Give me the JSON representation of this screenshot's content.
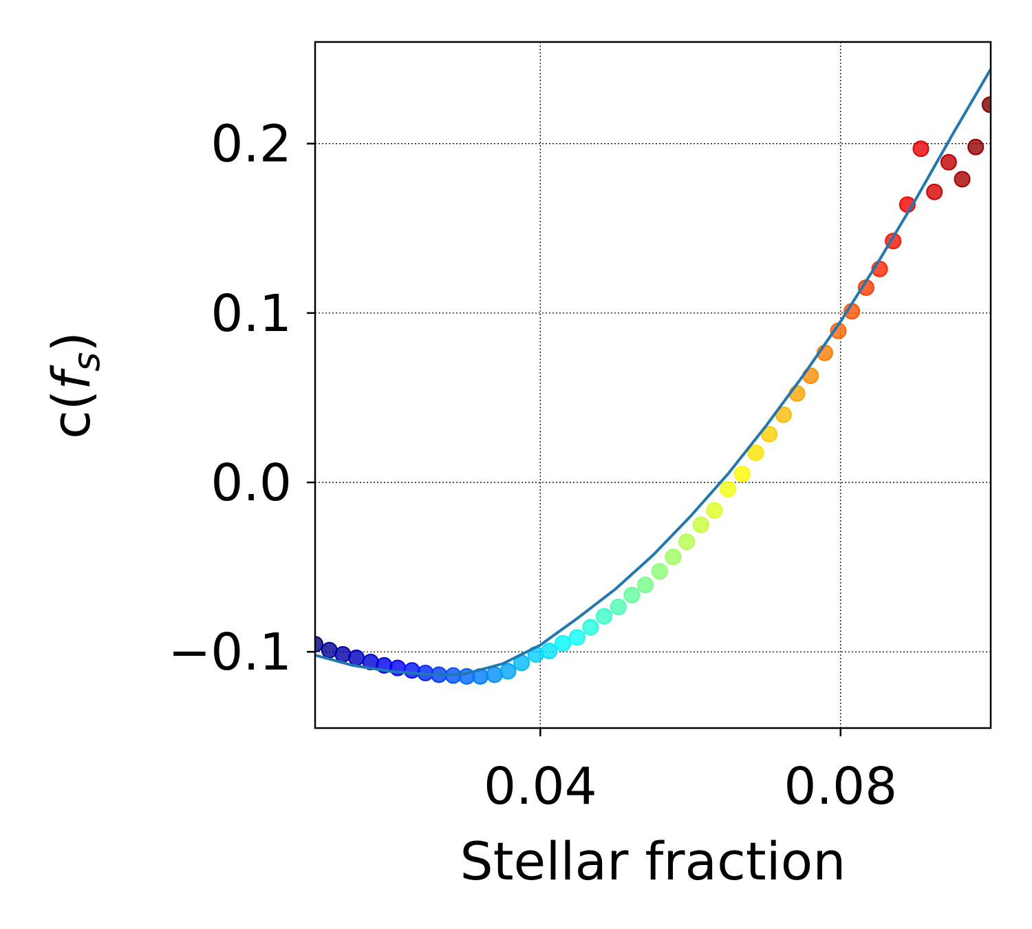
{
  "chart_data": {
    "type": "scatter",
    "xlabel": "Stellar fraction",
    "ylabel_main": "c(",
    "ylabel_var": "f",
    "ylabel_sub": "s",
    "ylabel_close": ")",
    "xlim": [
      0.01,
      0.1
    ],
    "ylim": [
      -0.145,
      0.26
    ],
    "xticks": [
      {
        "value": 0.04,
        "label": "0.04"
      },
      {
        "value": 0.08,
        "label": "0.08"
      }
    ],
    "yticks": [
      {
        "value": -0.1,
        "label": "−0.1"
      },
      {
        "value": 0.0,
        "label": "0.0"
      },
      {
        "value": 0.1,
        "label": "0.1"
      },
      {
        "value": 0.2,
        "label": "0.2"
      }
    ],
    "grid": true,
    "colormap": "jet",
    "points": [
      {
        "x": 0.01,
        "y": -0.0955
      },
      {
        "x": 0.0119,
        "y": -0.099
      },
      {
        "x": 0.0137,
        "y": -0.1015
      },
      {
        "x": 0.0155,
        "y": -0.1035
      },
      {
        "x": 0.0174,
        "y": -0.106
      },
      {
        "x": 0.0192,
        "y": -0.108
      },
      {
        "x": 0.021,
        "y": -0.1095
      },
      {
        "x": 0.0229,
        "y": -0.111
      },
      {
        "x": 0.0247,
        "y": -0.1125
      },
      {
        "x": 0.0265,
        "y": -0.1135
      },
      {
        "x": 0.0284,
        "y": -0.114
      },
      {
        "x": 0.0302,
        "y": -0.1145
      },
      {
        "x": 0.032,
        "y": -0.1145
      },
      {
        "x": 0.0339,
        "y": -0.1135
      },
      {
        "x": 0.0357,
        "y": -0.1115
      },
      {
        "x": 0.0375,
        "y": -0.1065
      },
      {
        "x": 0.0394,
        "y": -0.1015
      },
      {
        "x": 0.0412,
        "y": -0.0995
      },
      {
        "x": 0.043,
        "y": -0.095
      },
      {
        "x": 0.0449,
        "y": -0.0915
      },
      {
        "x": 0.0467,
        "y": -0.0855
      },
      {
        "x": 0.0485,
        "y": -0.079
      },
      {
        "x": 0.0504,
        "y": -0.0735
      },
      {
        "x": 0.0522,
        "y": -0.0665
      },
      {
        "x": 0.054,
        "y": -0.0605
      },
      {
        "x": 0.0559,
        "y": -0.0525
      },
      {
        "x": 0.0577,
        "y": -0.044
      },
      {
        "x": 0.0595,
        "y": -0.035
      },
      {
        "x": 0.0614,
        "y": -0.025
      },
      {
        "x": 0.0632,
        "y": -0.0165
      },
      {
        "x": 0.065,
        "y": -0.004
      },
      {
        "x": 0.0669,
        "y": 0.005
      },
      {
        "x": 0.0687,
        "y": 0.0175
      },
      {
        "x": 0.0705,
        "y": 0.0285
      },
      {
        "x": 0.0724,
        "y": 0.04
      },
      {
        "x": 0.0742,
        "y": 0.0525
      },
      {
        "x": 0.076,
        "y": 0.063
      },
      {
        "x": 0.0779,
        "y": 0.0765
      },
      {
        "x": 0.0797,
        "y": 0.0895
      },
      {
        "x": 0.0815,
        "y": 0.101
      },
      {
        "x": 0.0834,
        "y": 0.115
      },
      {
        "x": 0.0852,
        "y": 0.126
      },
      {
        "x": 0.087,
        "y": 0.1425
      },
      {
        "x": 0.0889,
        "y": 0.164
      },
      {
        "x": 0.0907,
        "y": 0.197
      },
      {
        "x": 0.0925,
        "y": 0.1715
      },
      {
        "x": 0.0944,
        "y": 0.189
      },
      {
        "x": 0.0962,
        "y": 0.179
      },
      {
        "x": 0.098,
        "y": 0.198
      },
      {
        "x": 0.0999,
        "y": 0.223
      }
    ],
    "fit_curve": {
      "color": "#1f77b4",
      "x": [
        0.01,
        0.015,
        0.02,
        0.025,
        0.0282,
        0.03,
        0.035,
        0.04,
        0.045,
        0.05,
        0.055,
        0.06,
        0.065,
        0.07,
        0.075,
        0.08,
        0.085,
        0.09,
        0.095,
        0.1
      ],
      "y": [
        -0.102,
        -0.108,
        -0.1115,
        -0.1133,
        -0.1136,
        -0.113,
        -0.107,
        -0.096,
        -0.08,
        -0.063,
        -0.043,
        -0.02,
        0.005,
        0.033,
        0.063,
        0.095,
        0.13,
        0.167,
        0.206,
        0.244
      ]
    }
  }
}
